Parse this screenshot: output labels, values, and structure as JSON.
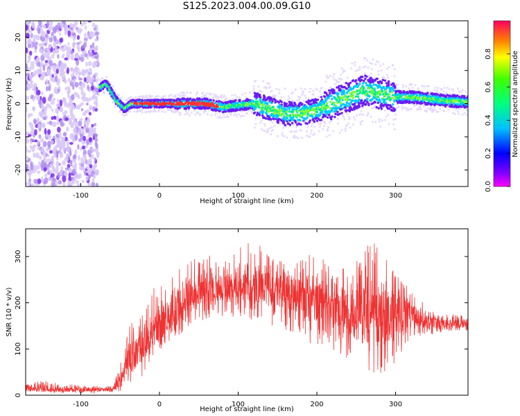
{
  "title": "S125.2023.004.00.09.G10",
  "charts": [
    {
      "type": "heatmap",
      "xlabel": "Height of straight line (km)",
      "ylabel": "Frequency (Hz)",
      "xlim": [
        -170,
        392
      ],
      "ylim": [
        -25,
        25
      ],
      "xticks": [
        -100,
        0,
        100,
        200,
        300
      ],
      "yticks": [
        -20,
        -10,
        0,
        10,
        20
      ],
      "colorbar": {
        "label": "Normalized spectral amplitude",
        "range": [
          0,
          1
        ],
        "ticks": [
          "0.0",
          "0.2",
          "0.4",
          "0.6",
          "0.8"
        ]
      },
      "noise_region_km": [
        -170,
        -78
      ],
      "ridge": [
        {
          "x": -75,
          "y": 5
        },
        {
          "x": -68,
          "y": 6
        },
        {
          "x": -62,
          "y": 4
        },
        {
          "x": -55,
          "y": 1
        },
        {
          "x": -45,
          "y": -1.5
        },
        {
          "x": -35,
          "y": 0
        },
        {
          "x": -20,
          "y": 0
        },
        {
          "x": 0,
          "y": 0
        },
        {
          "x": 40,
          "y": 0
        },
        {
          "x": 60,
          "y": 0
        },
        {
          "x": 80,
          "y": -1
        },
        {
          "x": 100,
          "y": -0.5
        },
        {
          "x": 120,
          "y": 0
        },
        {
          "x": 140,
          "y": -1.5
        },
        {
          "x": 160,
          "y": -3
        },
        {
          "x": 180,
          "y": -3
        },
        {
          "x": 200,
          "y": -2
        },
        {
          "x": 220,
          "y": 0
        },
        {
          "x": 240,
          "y": 2
        },
        {
          "x": 260,
          "y": 4
        },
        {
          "x": 280,
          "y": 3
        },
        {
          "x": 300,
          "y": 2
        },
        {
          "x": 320,
          "y": 2
        },
        {
          "x": 340,
          "y": 1.5
        },
        {
          "x": 360,
          "y": 1
        },
        {
          "x": 392,
          "y": 0.5
        }
      ]
    },
    {
      "type": "line",
      "xlabel": "Height of straight line (km)",
      "ylabel": "SNR (10 * v/v)",
      "xlim": [
        -170,
        392
      ],
      "ylim": [
        0,
        360
      ],
      "xticks": [
        -100,
        0,
        100,
        200,
        300
      ],
      "yticks": [
        0,
        100,
        200,
        300
      ],
      "series": [
        {
          "color": "#ee3333",
          "envelope": [
            {
              "x": -170,
              "low": 5,
              "mean": 12,
              "high": 22
            },
            {
              "x": -150,
              "low": 5,
              "mean": 13,
              "high": 32
            },
            {
              "x": -100,
              "low": 5,
              "mean": 12,
              "high": 22
            },
            {
              "x": -60,
              "low": 5,
              "mean": 12,
              "high": 20
            },
            {
              "x": -45,
              "low": 10,
              "mean": 40,
              "high": 90
            },
            {
              "x": -40,
              "low": 20,
              "mean": 80,
              "high": 160
            },
            {
              "x": -30,
              "low": 20,
              "mean": 90,
              "high": 170
            },
            {
              "x": -20,
              "low": 40,
              "mean": 110,
              "high": 200
            },
            {
              "x": 0,
              "low": 80,
              "mean": 150,
              "high": 250
            },
            {
              "x": 20,
              "low": 120,
              "mean": 190,
              "high": 270
            },
            {
              "x": 40,
              "low": 150,
              "mean": 210,
              "high": 290
            },
            {
              "x": 60,
              "low": 160,
              "mean": 225,
              "high": 310
            },
            {
              "x": 80,
              "low": 170,
              "mean": 230,
              "high": 300
            },
            {
              "x": 100,
              "low": 170,
              "mean": 235,
              "high": 320
            },
            {
              "x": 120,
              "low": 160,
              "mean": 235,
              "high": 340
            },
            {
              "x": 140,
              "low": 150,
              "mean": 230,
              "high": 310
            },
            {
              "x": 160,
              "low": 130,
              "mean": 225,
              "high": 290
            },
            {
              "x": 180,
              "low": 120,
              "mean": 215,
              "high": 300
            },
            {
              "x": 200,
              "low": 100,
              "mean": 210,
              "high": 310
            },
            {
              "x": 220,
              "low": 90,
              "mean": 195,
              "high": 270
            },
            {
              "x": 240,
              "low": 70,
              "mean": 180,
              "high": 280
            },
            {
              "x": 260,
              "low": 50,
              "mean": 170,
              "high": 330
            },
            {
              "x": 280,
              "low": 30,
              "mean": 165,
              "high": 330
            },
            {
              "x": 300,
              "low": 70,
              "mean": 175,
              "high": 260
            },
            {
              "x": 320,
              "low": 110,
              "mean": 170,
              "high": 230
            },
            {
              "x": 340,
              "low": 130,
              "mean": 160,
              "high": 190
            },
            {
              "x": 360,
              "low": 135,
              "mean": 155,
              "high": 175
            },
            {
              "x": 392,
              "low": 135,
              "mean": 155,
              "high": 175
            }
          ]
        }
      ]
    }
  ]
}
